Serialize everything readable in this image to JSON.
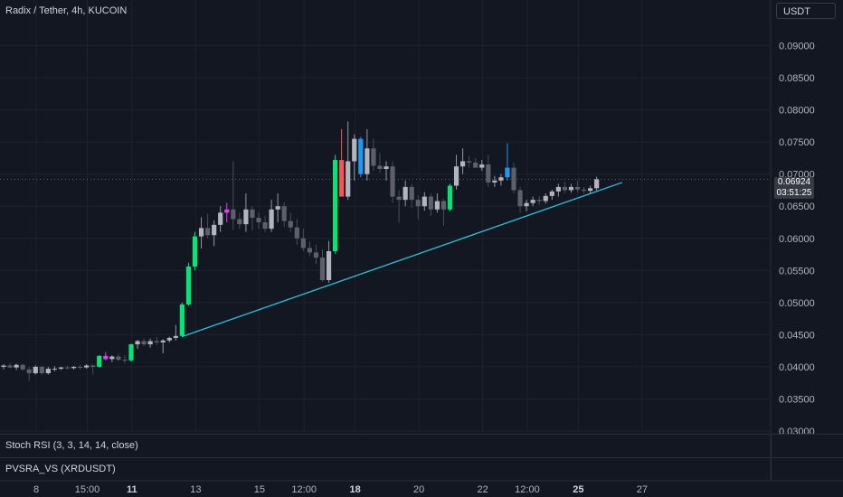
{
  "header": {
    "symbol_title": "Radix / Tether, 4h, KUCOIN",
    "currency_button": "USDT"
  },
  "last_price": {
    "price": "0.06924",
    "countdown": "03:51:25"
  },
  "indicators": {
    "stoch_rsi": "Stoch RSI (3, 3, 14, 14, close)",
    "pvsra": "PVSRA_VS (XRDUSDT)"
  },
  "colors": {
    "background": "#131722",
    "grid": "#1e222d",
    "neutral_up": "#b2b5be",
    "neutral_down": "#5d606b",
    "climax_up": "#00e676",
    "climax_down": "#ff5252",
    "rising_up": "#2196f3",
    "rising_down": "#e040fb",
    "trendline": "#26c6da"
  },
  "chart_data": {
    "type": "candlestick",
    "title": "Radix / Tether, 4h, KUCOIN",
    "ylim": [
      0.03,
      0.095
    ],
    "y_ticks": [
      "0.09000",
      "0.08500",
      "0.08000",
      "0.07500",
      "0.07000",
      "0.06500",
      "0.06000",
      "0.05500",
      "0.05000",
      "0.04500",
      "0.04000",
      "0.03500",
      "0.03000"
    ],
    "x_ticks": [
      {
        "label": "8",
        "major": false,
        "index": 2
      },
      {
        "label": "15:00",
        "major": false,
        "index": 10
      },
      {
        "label": "11",
        "major": true,
        "index": 17
      },
      {
        "label": "13",
        "major": false,
        "index": 27
      },
      {
        "label": "15",
        "major": false,
        "index": 37
      },
      {
        "label": "12:00",
        "major": false,
        "index": 44
      },
      {
        "label": "18",
        "major": true,
        "index": 52
      },
      {
        "label": "20",
        "major": false,
        "index": 62
      },
      {
        "label": "22",
        "major": false,
        "index": 72
      },
      {
        "label": "12:00",
        "major": false,
        "index": 79
      },
      {
        "label": "25",
        "major": true,
        "index": 87
      },
      {
        "label": "27",
        "major": false,
        "index": 97
      }
    ],
    "candles": [
      {
        "o": 0.04,
        "h": 0.0404,
        "l": 0.0396,
        "c": 0.0402,
        "v": "n"
      },
      {
        "o": 0.0402,
        "h": 0.0406,
        "l": 0.0398,
        "c": 0.0399,
        "v": "n"
      },
      {
        "o": 0.0399,
        "h": 0.0405,
        "l": 0.0395,
        "c": 0.0403,
        "v": "n"
      },
      {
        "o": 0.0403,
        "h": 0.0405,
        "l": 0.0394,
        "c": 0.0396,
        "v": "n"
      },
      {
        "o": 0.0396,
        "h": 0.04,
        "l": 0.0378,
        "c": 0.039,
        "v": "n"
      },
      {
        "o": 0.039,
        "h": 0.0402,
        "l": 0.0388,
        "c": 0.04,
        "v": "n"
      },
      {
        "o": 0.04,
        "h": 0.0401,
        "l": 0.0388,
        "c": 0.039,
        "v": "n"
      },
      {
        "o": 0.039,
        "h": 0.04,
        "l": 0.0388,
        "c": 0.0397,
        "v": "n"
      },
      {
        "o": 0.0397,
        "h": 0.0401,
        "l": 0.0393,
        "c": 0.0397,
        "v": "n"
      },
      {
        "o": 0.0397,
        "h": 0.04,
        "l": 0.0395,
        "c": 0.0399,
        "v": "n"
      },
      {
        "o": 0.0399,
        "h": 0.0402,
        "l": 0.0396,
        "c": 0.0398,
        "v": "n"
      },
      {
        "o": 0.0398,
        "h": 0.0401,
        "l": 0.0396,
        "c": 0.04,
        "v": "n"
      },
      {
        "o": 0.04,
        "h": 0.0403,
        "l": 0.0396,
        "c": 0.0399,
        "v": "n"
      },
      {
        "o": 0.0399,
        "h": 0.0404,
        "l": 0.0397,
        "c": 0.0402,
        "v": "n"
      },
      {
        "o": 0.0402,
        "h": 0.0404,
        "l": 0.0388,
        "c": 0.04,
        "v": "n"
      },
      {
        "o": 0.04,
        "h": 0.0418,
        "l": 0.0399,
        "c": 0.0417,
        "v": "cu"
      },
      {
        "o": 0.0417,
        "h": 0.0423,
        "l": 0.041,
        "c": 0.0412,
        "v": "rd"
      },
      {
        "o": 0.0412,
        "h": 0.0418,
        "l": 0.0407,
        "c": 0.0416,
        "v": "n"
      },
      {
        "o": 0.0416,
        "h": 0.042,
        "l": 0.0409,
        "c": 0.0411,
        "v": "n"
      },
      {
        "o": 0.0411,
        "h": 0.0418,
        "l": 0.0405,
        "c": 0.041,
        "v": "n"
      },
      {
        "o": 0.041,
        "h": 0.0436,
        "l": 0.0408,
        "c": 0.0435,
        "v": "cu"
      },
      {
        "o": 0.0435,
        "h": 0.0442,
        "l": 0.0428,
        "c": 0.044,
        "v": "n"
      },
      {
        "o": 0.044,
        "h": 0.0444,
        "l": 0.0432,
        "c": 0.0435,
        "v": "n"
      },
      {
        "o": 0.0435,
        "h": 0.0444,
        "l": 0.043,
        "c": 0.044,
        "v": "n"
      },
      {
        "o": 0.044,
        "h": 0.0446,
        "l": 0.0434,
        "c": 0.0438,
        "v": "n"
      },
      {
        "o": 0.0438,
        "h": 0.0443,
        "l": 0.0421,
        "c": 0.0441,
        "v": "n"
      },
      {
        "o": 0.0441,
        "h": 0.0447,
        "l": 0.0438,
        "c": 0.0445,
        "v": "n"
      },
      {
        "o": 0.0445,
        "h": 0.0465,
        "l": 0.0441,
        "c": 0.0448,
        "v": "n"
      },
      {
        "o": 0.0448,
        "h": 0.05,
        "l": 0.0446,
        "c": 0.0497,
        "v": "cu"
      },
      {
        "o": 0.0497,
        "h": 0.0562,
        "l": 0.0495,
        "c": 0.0556,
        "v": "cu"
      },
      {
        "o": 0.0556,
        "h": 0.061,
        "l": 0.055,
        "c": 0.0603,
        "v": "cu"
      },
      {
        "o": 0.0603,
        "h": 0.0633,
        "l": 0.0584,
        "c": 0.0616,
        "v": "n"
      },
      {
        "o": 0.0616,
        "h": 0.0638,
        "l": 0.06,
        "c": 0.0605,
        "v": "n"
      },
      {
        "o": 0.0605,
        "h": 0.0628,
        "l": 0.0588,
        "c": 0.0621,
        "v": "n"
      },
      {
        "o": 0.0621,
        "h": 0.065,
        "l": 0.061,
        "c": 0.064,
        "v": "n"
      },
      {
        "o": 0.064,
        "h": 0.0655,
        "l": 0.0625,
        "c": 0.0645,
        "v": "rd"
      },
      {
        "o": 0.0645,
        "h": 0.072,
        "l": 0.0613,
        "c": 0.063,
        "v": "n"
      },
      {
        "o": 0.063,
        "h": 0.064,
        "l": 0.0615,
        "c": 0.0622,
        "v": "n"
      },
      {
        "o": 0.0622,
        "h": 0.067,
        "l": 0.061,
        "c": 0.0645,
        "v": "n"
      },
      {
        "o": 0.0645,
        "h": 0.065,
        "l": 0.0613,
        "c": 0.0632,
        "v": "n"
      },
      {
        "o": 0.0632,
        "h": 0.064,
        "l": 0.0615,
        "c": 0.0625,
        "v": "n"
      },
      {
        "o": 0.0625,
        "h": 0.0635,
        "l": 0.061,
        "c": 0.0615,
        "v": "n"
      },
      {
        "o": 0.0615,
        "h": 0.066,
        "l": 0.061,
        "c": 0.0645,
        "v": "n"
      },
      {
        "o": 0.0645,
        "h": 0.067,
        "l": 0.0625,
        "c": 0.065,
        "v": "n"
      },
      {
        "o": 0.065,
        "h": 0.0656,
        "l": 0.0618,
        "c": 0.0627,
        "v": "n"
      },
      {
        "o": 0.0627,
        "h": 0.064,
        "l": 0.061,
        "c": 0.0617,
        "v": "n"
      },
      {
        "o": 0.0617,
        "h": 0.063,
        "l": 0.059,
        "c": 0.06,
        "v": "n"
      },
      {
        "o": 0.06,
        "h": 0.0615,
        "l": 0.058,
        "c": 0.0585,
        "v": "n"
      },
      {
        "o": 0.0585,
        "h": 0.0595,
        "l": 0.0572,
        "c": 0.0578,
        "v": "n"
      },
      {
        "o": 0.0578,
        "h": 0.059,
        "l": 0.056,
        "c": 0.057,
        "v": "n"
      },
      {
        "o": 0.057,
        "h": 0.0583,
        "l": 0.0532,
        "c": 0.0535,
        "v": "n"
      },
      {
        "o": 0.0535,
        "h": 0.0596,
        "l": 0.0531,
        "c": 0.058,
        "v": "n"
      },
      {
        "o": 0.058,
        "h": 0.073,
        "l": 0.0576,
        "c": 0.0722,
        "v": "cu"
      },
      {
        "o": 0.0722,
        "h": 0.077,
        "l": 0.0666,
        "c": 0.0665,
        "v": "cd"
      },
      {
        "o": 0.0665,
        "h": 0.0782,
        "l": 0.066,
        "c": 0.072,
        "v": "n"
      },
      {
        "o": 0.072,
        "h": 0.0762,
        "l": 0.069,
        "c": 0.0755,
        "v": "n"
      },
      {
        "o": 0.0755,
        "h": 0.0758,
        "l": 0.0695,
        "c": 0.07,
        "v": "ru"
      },
      {
        "o": 0.07,
        "h": 0.077,
        "l": 0.069,
        "c": 0.074,
        "v": "n"
      },
      {
        "o": 0.074,
        "h": 0.0755,
        "l": 0.0705,
        "c": 0.0713,
        "v": "n"
      },
      {
        "o": 0.0713,
        "h": 0.0733,
        "l": 0.0702,
        "c": 0.0708,
        "v": "n"
      },
      {
        "o": 0.0708,
        "h": 0.072,
        "l": 0.069,
        "c": 0.0712,
        "v": "n"
      },
      {
        "o": 0.0712,
        "h": 0.072,
        "l": 0.0655,
        "c": 0.0665,
        "v": "n"
      },
      {
        "o": 0.0665,
        "h": 0.0675,
        "l": 0.0625,
        "c": 0.066,
        "v": "n"
      },
      {
        "o": 0.066,
        "h": 0.069,
        "l": 0.065,
        "c": 0.068,
        "v": "n"
      },
      {
        "o": 0.068,
        "h": 0.0685,
        "l": 0.0647,
        "c": 0.066,
        "v": "n"
      },
      {
        "o": 0.066,
        "h": 0.0667,
        "l": 0.063,
        "c": 0.065,
        "v": "n"
      },
      {
        "o": 0.065,
        "h": 0.0672,
        "l": 0.0643,
        "c": 0.0665,
        "v": "n"
      },
      {
        "o": 0.0665,
        "h": 0.067,
        "l": 0.0635,
        "c": 0.0645,
        "v": "n"
      },
      {
        "o": 0.0645,
        "h": 0.067,
        "l": 0.064,
        "c": 0.0658,
        "v": "n"
      },
      {
        "o": 0.0658,
        "h": 0.0662,
        "l": 0.062,
        "c": 0.0645,
        "v": "n"
      },
      {
        "o": 0.0645,
        "h": 0.0685,
        "l": 0.0642,
        "c": 0.0682,
        "v": "cu"
      },
      {
        "o": 0.0682,
        "h": 0.073,
        "l": 0.0676,
        "c": 0.0712,
        "v": "n"
      },
      {
        "o": 0.0712,
        "h": 0.074,
        "l": 0.07,
        "c": 0.072,
        "v": "n"
      },
      {
        "o": 0.072,
        "h": 0.0728,
        "l": 0.071,
        "c": 0.0718,
        "v": "n"
      },
      {
        "o": 0.0718,
        "h": 0.0725,
        "l": 0.071,
        "c": 0.071,
        "v": "n"
      },
      {
        "o": 0.071,
        "h": 0.0722,
        "l": 0.0705,
        "c": 0.0715,
        "v": "n"
      },
      {
        "o": 0.0715,
        "h": 0.073,
        "l": 0.068,
        "c": 0.0687,
        "v": "n"
      },
      {
        "o": 0.0687,
        "h": 0.0697,
        "l": 0.068,
        "c": 0.069,
        "v": "n"
      },
      {
        "o": 0.069,
        "h": 0.07,
        "l": 0.0682,
        "c": 0.0695,
        "v": "n"
      },
      {
        "o": 0.0695,
        "h": 0.0748,
        "l": 0.069,
        "c": 0.071,
        "v": "ru"
      },
      {
        "o": 0.071,
        "h": 0.0718,
        "l": 0.067,
        "c": 0.0675,
        "v": "n"
      },
      {
        "o": 0.0675,
        "h": 0.068,
        "l": 0.064,
        "c": 0.065,
        "v": "n"
      },
      {
        "o": 0.065,
        "h": 0.066,
        "l": 0.0642,
        "c": 0.0655,
        "v": "n"
      },
      {
        "o": 0.0655,
        "h": 0.0665,
        "l": 0.065,
        "c": 0.066,
        "v": "n"
      },
      {
        "o": 0.066,
        "h": 0.0666,
        "l": 0.0652,
        "c": 0.0658,
        "v": "n"
      },
      {
        "o": 0.0658,
        "h": 0.067,
        "l": 0.0654,
        "c": 0.0666,
        "v": "n"
      },
      {
        "o": 0.0666,
        "h": 0.0676,
        "l": 0.066,
        "c": 0.0673,
        "v": "n"
      },
      {
        "o": 0.0673,
        "h": 0.0685,
        "l": 0.0665,
        "c": 0.068,
        "v": "n"
      },
      {
        "o": 0.068,
        "h": 0.0688,
        "l": 0.067,
        "c": 0.0675,
        "v": "n"
      },
      {
        "o": 0.0675,
        "h": 0.0685,
        "l": 0.0671,
        "c": 0.068,
        "v": "n"
      },
      {
        "o": 0.068,
        "h": 0.069,
        "l": 0.0672,
        "c": 0.0676,
        "v": "n"
      },
      {
        "o": 0.0676,
        "h": 0.068,
        "l": 0.067,
        "c": 0.0674,
        "v": "n"
      },
      {
        "o": 0.0674,
        "h": 0.0682,
        "l": 0.067,
        "c": 0.0678,
        "v": "n"
      },
      {
        "o": 0.0678,
        "h": 0.0696,
        "l": 0.0674,
        "c": 0.0692,
        "v": "n"
      }
    ],
    "trendline": {
      "from": [
        28,
        0.0447
      ],
      "to": [
        97,
        0.0687
      ]
    }
  }
}
